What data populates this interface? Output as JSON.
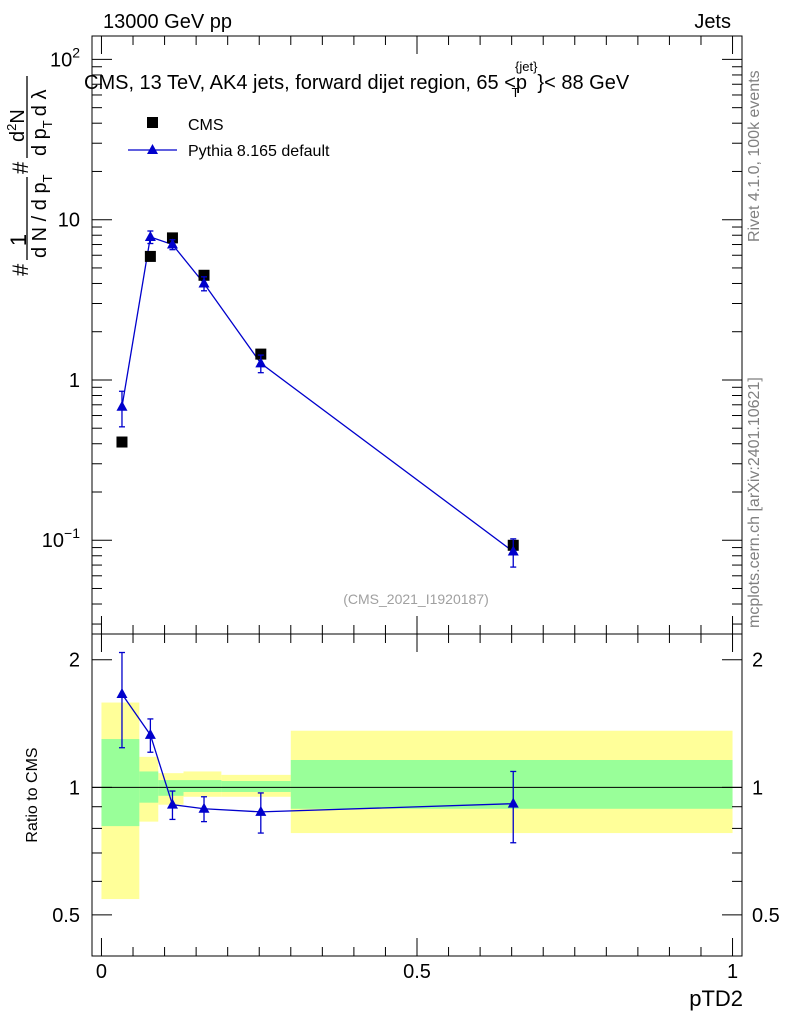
{
  "header": {
    "left": "13000 GeV pp",
    "right": "Jets"
  },
  "plot_title": {
    "prefix": "CMS, 13 TeV, AK4 jets, forward dijet region, 65 <",
    "p": "p",
    "sub": "T",
    "sup": "{jet}",
    "suffix": "}< 88 GeV"
  },
  "side_labels": {
    "rivet": "Rivet 4.1.0,  100k events",
    "mcplots": "mcplots.cern.ch [arXiv:2401.10621]"
  },
  "watermark": "(CMS_2021_I1920187)",
  "ylabel_top": {
    "frac1_num": "1",
    "frac1_den": "d N / d p",
    "frac1_den_sub": "T",
    "frac2_num": "d",
    "frac2_num_sup": "2",
    "frac2_num_rest": "N",
    "frac2_den": "d p",
    "frac2_den_sub": "T",
    "frac2_den_rest": "d λ",
    "hash": "#"
  },
  "ylabel_bottom": "Ratio to CMS",
  "xlabel": "pTD2",
  "legend": [
    {
      "name": "CMS",
      "color": "#000000",
      "marker": "square"
    },
    {
      "name": "Pythia 8.165 default",
      "color": "#0000cc",
      "marker": "triangle"
    }
  ],
  "colors": {
    "mc": "#0000cc",
    "data": "#000000",
    "band_outer": "#ffff99",
    "band_inner": "#99ff99"
  },
  "chart_data": [
    {
      "type": "scatter",
      "name": "main",
      "yscale": "log",
      "xlim": [
        -0.015,
        1.015
      ],
      "ylim": [
        0.026,
        140
      ],
      "yticks": [
        {
          "value": 0.1,
          "label": "10",
          "sup": "−1"
        },
        {
          "value": 1,
          "label": "1",
          "sup": ""
        },
        {
          "value": 10,
          "label": "10",
          "sup": ""
        },
        {
          "value": 100,
          "label": "10",
          "sup": "2"
        }
      ],
      "series": [
        {
          "name": "CMS",
          "x": [
            0.0325,
            0.0775,
            0.1125,
            0.1625,
            0.2525,
            0.6525
          ],
          "y": [
            0.41,
            5.9,
            7.7,
            4.5,
            1.45,
            0.093
          ]
        },
        {
          "name": "Pythia 8.165 default",
          "x": [
            0.0325,
            0.0775,
            0.1125,
            0.1625,
            0.2525,
            0.6525
          ],
          "y": [
            0.68,
            7.8,
            7.0,
            4.0,
            1.27,
            0.085
          ],
          "yerr_low": [
            0.17,
            0.7,
            0.5,
            0.4,
            0.16,
            0.017
          ],
          "yerr_high": [
            0.17,
            0.7,
            0.5,
            0.4,
            0.16,
            0.017
          ]
        }
      ]
    },
    {
      "type": "scatter",
      "name": "ratio",
      "xlim": [
        -0.015,
        1.015
      ],
      "ylim": [
        0.4,
        2.3
      ],
      "yticks": [
        0.5,
        1,
        2
      ],
      "xticks": [
        {
          "value": 0,
          "label": "0"
        },
        {
          "value": 0.5,
          "label": "0.5"
        },
        {
          "value": 1,
          "label": "1"
        }
      ],
      "reference_line": 1.0,
      "bins": [
        {
          "x0": 0.0,
          "x1": 0.06,
          "outer": [
            0.545,
            1.585
          ],
          "inner": [
            0.81,
            1.3
          ]
        },
        {
          "x0": 0.06,
          "x1": 0.09,
          "outer": [
            0.83,
            1.18
          ],
          "inner": [
            0.92,
            1.09
          ]
        },
        {
          "x0": 0.09,
          "x1": 0.13,
          "outer": [
            0.91,
            1.08
          ],
          "inner": [
            0.955,
            1.04
          ]
        },
        {
          "x0": 0.13,
          "x1": 0.19,
          "outer": [
            0.95,
            1.09
          ],
          "inner": [
            0.975,
            1.04
          ]
        },
        {
          "x0": 0.19,
          "x1": 0.3,
          "outer": [
            0.95,
            1.07
          ],
          "inner": [
            0.975,
            1.035
          ]
        },
        {
          "x0": 0.3,
          "x1": 1.0,
          "outer": [
            0.78,
            1.36
          ],
          "inner": [
            0.89,
            1.16
          ]
        }
      ],
      "series": [
        {
          "name": "Pythia 8.165 default",
          "x": [
            0.0325,
            0.0775,
            0.1125,
            0.1625,
            0.2525,
            0.6525
          ],
          "y": [
            1.66,
            1.33,
            0.91,
            0.89,
            0.875,
            0.915
          ],
          "yerr_low": [
            0.42,
            0.12,
            0.07,
            0.06,
            0.095,
            0.175
          ],
          "yerr_high": [
            0.42,
            0.12,
            0.07,
            0.06,
            0.095,
            0.175
          ]
        }
      ]
    }
  ]
}
